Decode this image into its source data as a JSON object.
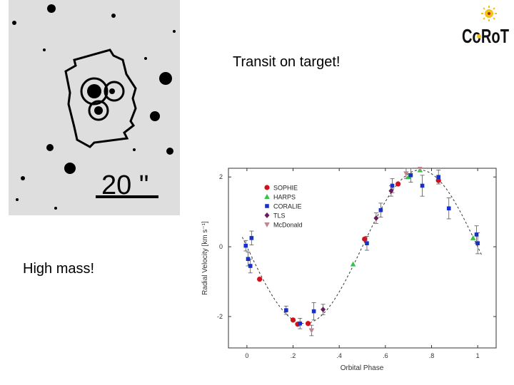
{
  "slide": {
    "transit_caption": "Transit on target!",
    "mass_caption": "High mass!",
    "logo_text": "CoRoT"
  },
  "finder_chart": {
    "scale_label": "20 \""
  },
  "colors": {
    "SOPHIE": "#d0111b",
    "HARPS": "#37c24a",
    "CORALIE": "#1830c8",
    "TLS": "#6b1a5c",
    "McDonald": "#c08590"
  },
  "chart_data": {
    "type": "scatter",
    "title": "",
    "xlabel": "Orbital Phase",
    "ylabel": "Radial Velocity [km s⁻¹]",
    "xlim": [
      -0.08,
      1.08
    ],
    "ylim": [
      -2.9,
      2.25
    ],
    "xticks": [
      0,
      0.2,
      0.4,
      0.6,
      0.8,
      1.0
    ],
    "xtick_labels": [
      "0",
      ".2",
      ".4",
      ".6",
      ".8",
      "1"
    ],
    "yticks": [
      -2,
      0,
      2
    ],
    "ytick_labels": [
      "-2",
      "0",
      "2"
    ],
    "legend_position": "top-left",
    "model_curve": {
      "name": "orbit fit",
      "style": "dashed",
      "amplitude": 2.2,
      "phase_zero_crossing": 0.5
    },
    "series": [
      {
        "name": "SOPHIE",
        "marker": "circle",
        "points": [
          [
            0.055,
            -0.93,
            0.05
          ],
          [
            0.2,
            -2.1,
            0.05
          ],
          [
            0.22,
            -2.22,
            0.05
          ],
          [
            0.265,
            -2.2,
            0.05
          ],
          [
            0.51,
            0.22,
            0.05
          ],
          [
            0.655,
            1.8,
            0.05
          ],
          [
            0.83,
            1.9,
            0.05
          ]
        ]
      },
      {
        "name": "HARPS",
        "marker": "triangle-up",
        "points": [
          [
            0.46,
            -0.5,
            0.04
          ],
          [
            0.7,
            2.0,
            0.04
          ],
          [
            0.75,
            2.2,
            0.04
          ],
          [
            0.98,
            0.25,
            0.04
          ]
        ]
      },
      {
        "name": "CORALIE",
        "marker": "square",
        "points": [
          [
            -0.005,
            0.03,
            0.15
          ],
          [
            0.005,
            -0.35,
            0.2
          ],
          [
            0.015,
            -0.55,
            0.2
          ],
          [
            0.02,
            0.25,
            0.2
          ],
          [
            0.17,
            -1.82,
            0.12
          ],
          [
            0.23,
            -2.2,
            0.15
          ],
          [
            0.29,
            -1.85,
            0.25
          ],
          [
            0.52,
            0.1,
            0.2
          ],
          [
            0.58,
            1.05,
            0.2
          ],
          [
            0.63,
            1.75,
            0.2
          ],
          [
            0.71,
            2.05,
            0.2
          ],
          [
            0.76,
            1.75,
            0.3
          ],
          [
            0.83,
            2.0,
            0.2
          ],
          [
            0.875,
            1.1,
            0.3
          ],
          [
            0.995,
            0.35,
            0.25
          ],
          [
            1.0,
            0.1,
            0.3
          ]
        ]
      },
      {
        "name": "TLS",
        "marker": "diamond",
        "points": [
          [
            0.33,
            -1.8,
            0.15
          ],
          [
            0.56,
            0.82,
            0.15
          ],
          [
            0.625,
            1.6,
            0.15
          ]
        ]
      },
      {
        "name": "McDonald",
        "marker": "triangle-down",
        "points": [
          [
            0.28,
            -2.4,
            0.15
          ],
          [
            0.69,
            2.1,
            0.15
          ],
          [
            0.75,
            2.25,
            0.1
          ]
        ]
      }
    ]
  }
}
